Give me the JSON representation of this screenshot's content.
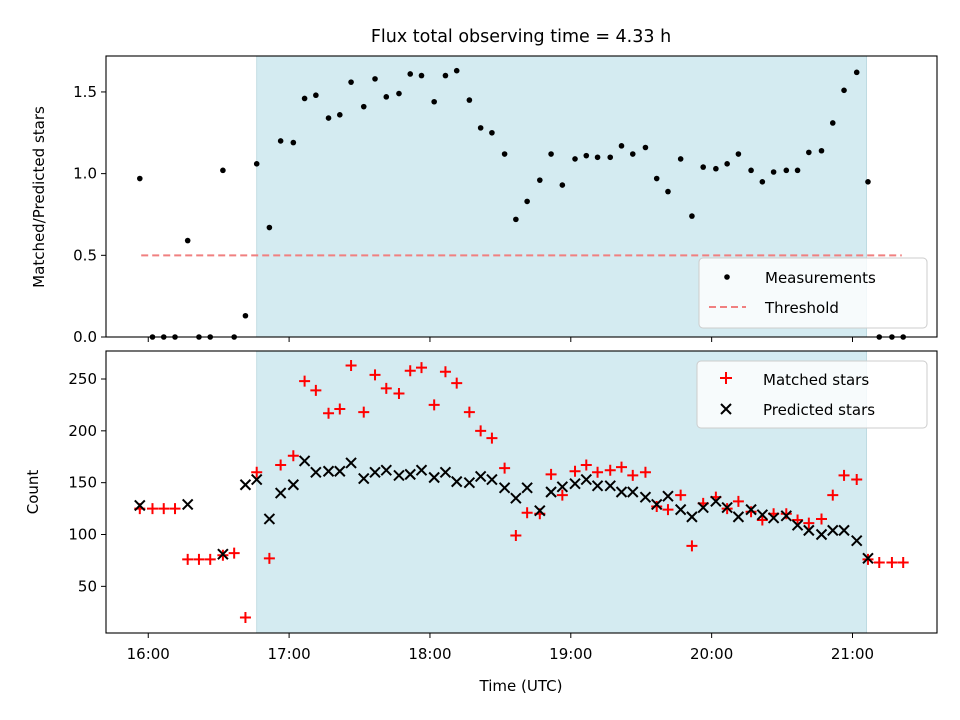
{
  "chart_data": {
    "type": "scatter",
    "title": "Flux total observing time = 4.33 h",
    "xlabel": "Time (UTC)",
    "x_unit": "hours UTC",
    "xlim": [
      15.7,
      21.6
    ],
    "x_ticks": [
      {
        "value": 16,
        "label": "16:00"
      },
      {
        "value": 17,
        "label": "17:00"
      },
      {
        "value": 18,
        "label": "18:00"
      },
      {
        "value": 19,
        "label": "19:00"
      },
      {
        "value": 20,
        "label": "20:00"
      },
      {
        "value": 21,
        "label": "21:00"
      }
    ],
    "shaded_window": {
      "start": 16.77,
      "end": 21.1,
      "color": "#d4ebf1"
    },
    "top_panel": {
      "ylabel": "Matched/Predicted stars",
      "ylim": [
        0,
        1.72
      ],
      "y_ticks": [
        {
          "value": 0.0,
          "label": "0.0"
        },
        {
          "value": 0.5,
          "label": "0.5"
        },
        {
          "value": 1.0,
          "label": "1.0"
        },
        {
          "value": 1.5,
          "label": "1.5"
        }
      ],
      "legend": {
        "position": "lower-right",
        "entries": [
          {
            "name": "Measurements",
            "marker": "dot",
            "color": "#000000"
          },
          {
            "name": "Threshold",
            "marker": "dashed-line",
            "color": "#f08080"
          }
        ]
      },
      "threshold": {
        "value": 0.5,
        "x_range": [
          15.95,
          21.35
        ],
        "color": "#f08080"
      },
      "measurements": [
        [
          15.94,
          0.97
        ],
        [
          16.03,
          0.0
        ],
        [
          16.11,
          0.0
        ],
        [
          16.19,
          0.0
        ],
        [
          16.28,
          0.59
        ],
        [
          16.36,
          0.0
        ],
        [
          16.44,
          0.0
        ],
        [
          16.53,
          1.02
        ],
        [
          16.61,
          0.0
        ],
        [
          16.69,
          0.13
        ],
        [
          16.77,
          1.06
        ],
        [
          16.86,
          0.67
        ],
        [
          16.94,
          1.2
        ],
        [
          17.03,
          1.19
        ],
        [
          17.11,
          1.46
        ],
        [
          17.19,
          1.48
        ],
        [
          17.28,
          1.34
        ],
        [
          17.36,
          1.36
        ],
        [
          17.44,
          1.56
        ],
        [
          17.53,
          1.41
        ],
        [
          17.61,
          1.58
        ],
        [
          17.69,
          1.47
        ],
        [
          17.78,
          1.49
        ],
        [
          17.86,
          1.61
        ],
        [
          17.94,
          1.6
        ],
        [
          18.03,
          1.44
        ],
        [
          18.11,
          1.6
        ],
        [
          18.19,
          1.63
        ],
        [
          18.28,
          1.45
        ],
        [
          18.36,
          1.28
        ],
        [
          18.44,
          1.25
        ],
        [
          18.53,
          1.12
        ],
        [
          18.61,
          0.72
        ],
        [
          18.69,
          0.83
        ],
        [
          18.78,
          0.96
        ],
        [
          18.86,
          1.12
        ],
        [
          18.94,
          0.93
        ],
        [
          19.03,
          1.09
        ],
        [
          19.11,
          1.11
        ],
        [
          19.19,
          1.1
        ],
        [
          19.28,
          1.1
        ],
        [
          19.36,
          1.17
        ],
        [
          19.44,
          1.12
        ],
        [
          19.53,
          1.16
        ],
        [
          19.61,
          0.97
        ],
        [
          19.69,
          0.89
        ],
        [
          19.78,
          1.09
        ],
        [
          19.86,
          0.74
        ],
        [
          19.94,
          1.04
        ],
        [
          20.03,
          1.03
        ],
        [
          20.11,
          1.06
        ],
        [
          20.19,
          1.12
        ],
        [
          20.28,
          1.02
        ],
        [
          20.36,
          0.95
        ],
        [
          20.44,
          1.01
        ],
        [
          20.53,
          1.02
        ],
        [
          20.61,
          1.02
        ],
        [
          20.69,
          1.13
        ],
        [
          20.78,
          1.14
        ],
        [
          20.86,
          1.31
        ],
        [
          20.94,
          1.51
        ],
        [
          21.03,
          1.62
        ],
        [
          21.11,
          0.95
        ],
        [
          21.19,
          0.0
        ],
        [
          21.28,
          0.0
        ],
        [
          21.36,
          0.0
        ]
      ]
    },
    "bottom_panel": {
      "ylabel": "Count",
      "ylim": [
        5,
        277
      ],
      "y_ticks": [
        {
          "value": 50,
          "label": "50"
        },
        {
          "value": 100,
          "label": "100"
        },
        {
          "value": 150,
          "label": "150"
        },
        {
          "value": 200,
          "label": "200"
        },
        {
          "value": 250,
          "label": "250"
        }
      ],
      "legend": {
        "position": "top-right",
        "entries": [
          {
            "name": "Matched stars",
            "marker": "plus",
            "color": "#ff0000"
          },
          {
            "name": "Predicted stars",
            "marker": "x",
            "color": "#000000"
          }
        ]
      },
      "matched": [
        [
          15.94,
          125
        ],
        [
          16.03,
          125
        ],
        [
          16.11,
          125
        ],
        [
          16.19,
          125
        ],
        [
          16.28,
          76
        ],
        [
          16.36,
          76
        ],
        [
          16.44,
          76
        ],
        [
          16.53,
          80
        ],
        [
          16.61,
          82
        ],
        [
          16.69,
          20
        ],
        [
          16.77,
          160
        ],
        [
          16.86,
          77
        ],
        [
          16.94,
          167
        ],
        [
          17.03,
          176
        ],
        [
          17.11,
          248
        ],
        [
          17.19,
          239
        ],
        [
          17.28,
          217
        ],
        [
          17.36,
          221
        ],
        [
          17.44,
          263
        ],
        [
          17.53,
          218
        ],
        [
          17.61,
          254
        ],
        [
          17.69,
          241
        ],
        [
          17.78,
          236
        ],
        [
          17.86,
          258
        ],
        [
          17.94,
          261
        ],
        [
          18.03,
          225
        ],
        [
          18.11,
          257
        ],
        [
          18.19,
          246
        ],
        [
          18.28,
          218
        ],
        [
          18.36,
          200
        ],
        [
          18.44,
          193
        ],
        [
          18.53,
          164
        ],
        [
          18.61,
          99
        ],
        [
          18.69,
          121
        ],
        [
          18.78,
          120
        ],
        [
          18.86,
          158
        ],
        [
          18.94,
          138
        ],
        [
          19.03,
          161
        ],
        [
          19.11,
          167
        ],
        [
          19.19,
          160
        ],
        [
          19.28,
          162
        ],
        [
          19.36,
          165
        ],
        [
          19.44,
          157
        ],
        [
          19.53,
          160
        ],
        [
          19.61,
          127
        ],
        [
          19.69,
          124
        ],
        [
          19.78,
          138
        ],
        [
          19.86,
          89
        ],
        [
          19.94,
          130
        ],
        [
          20.03,
          136
        ],
        [
          20.11,
          125
        ],
        [
          20.19,
          132
        ],
        [
          20.28,
          122
        ],
        [
          20.36,
          114
        ],
        [
          20.44,
          120
        ],
        [
          20.53,
          120
        ],
        [
          20.61,
          114
        ],
        [
          20.69,
          111
        ],
        [
          20.78,
          115
        ],
        [
          20.86,
          138
        ],
        [
          20.94,
          157
        ],
        [
          21.03,
          153
        ],
        [
          21.11,
          76
        ],
        [
          21.19,
          73
        ],
        [
          21.28,
          73
        ],
        [
          21.36,
          73
        ]
      ],
      "predicted": [
        [
          15.94,
          128
        ],
        [
          16.28,
          129
        ],
        [
          16.53,
          81
        ],
        [
          16.69,
          148
        ],
        [
          16.77,
          153
        ],
        [
          16.86,
          115
        ],
        [
          16.94,
          140
        ],
        [
          17.03,
          148
        ],
        [
          17.11,
          171
        ],
        [
          17.19,
          160
        ],
        [
          17.28,
          161
        ],
        [
          17.36,
          161
        ],
        [
          17.44,
          169
        ],
        [
          17.53,
          154
        ],
        [
          17.61,
          160
        ],
        [
          17.69,
          162
        ],
        [
          17.78,
          157
        ],
        [
          17.86,
          158
        ],
        [
          17.94,
          162
        ],
        [
          18.03,
          155
        ],
        [
          18.11,
          160
        ],
        [
          18.19,
          151
        ],
        [
          18.28,
          150
        ],
        [
          18.36,
          156
        ],
        [
          18.44,
          153
        ],
        [
          18.53,
          145
        ],
        [
          18.61,
          135
        ],
        [
          18.69,
          145
        ],
        [
          18.78,
          123
        ],
        [
          18.86,
          141
        ],
        [
          18.94,
          146
        ],
        [
          19.03,
          149
        ],
        [
          19.11,
          153
        ],
        [
          19.19,
          147
        ],
        [
          19.28,
          147
        ],
        [
          19.36,
          141
        ],
        [
          19.44,
          141
        ],
        [
          19.53,
          136
        ],
        [
          19.61,
          129
        ],
        [
          19.69,
          137
        ],
        [
          19.78,
          124
        ],
        [
          19.86,
          117
        ],
        [
          19.94,
          126
        ],
        [
          20.03,
          132
        ],
        [
          20.11,
          126
        ],
        [
          20.19,
          117
        ],
        [
          20.28,
          124
        ],
        [
          20.36,
          119
        ],
        [
          20.44,
          116
        ],
        [
          20.53,
          118
        ],
        [
          20.61,
          109
        ],
        [
          20.69,
          104
        ],
        [
          20.78,
          100
        ],
        [
          20.86,
          104
        ],
        [
          20.94,
          104
        ],
        [
          21.03,
          94
        ],
        [
          21.11,
          77
        ]
      ]
    }
  }
}
